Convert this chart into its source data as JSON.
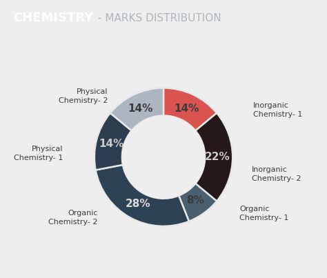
{
  "title_bold": "CHEMISTRY",
  "title_rest": "- MARKS DISTRIBUTION",
  "title_bg_color": "#454c5c",
  "title_text_bold_color": "#ffffff",
  "title_text_rest_color": "#adb5bd",
  "background_color": "#eeeeee",
  "chart_bg": "#e8e8e8",
  "segments": [
    {
      "label": "Inorganic\nChemistry- 1",
      "pct": 14,
      "color": "#d9534f"
    },
    {
      "label": "Inorganic\nChemistry- 2",
      "pct": 22,
      "color": "#251819"
    },
    {
      "label": "Organic\nChemistry- 1",
      "pct": 8,
      "color": "#4a6070"
    },
    {
      "label": "Organic\nChemistry- 2",
      "pct": 28,
      "color": "#2e4255"
    },
    {
      "label": "Physical\nChemistry- 1",
      "pct": 14,
      "color": "#2c3e50"
    },
    {
      "label": "Physical\nChemistry- 2",
      "pct": 14,
      "color": "#adb5c0"
    }
  ],
  "pct_fontsize": 11,
  "label_fontsize": 8,
  "figsize": [
    4.74,
    4.03
  ],
  "dpi": 100
}
